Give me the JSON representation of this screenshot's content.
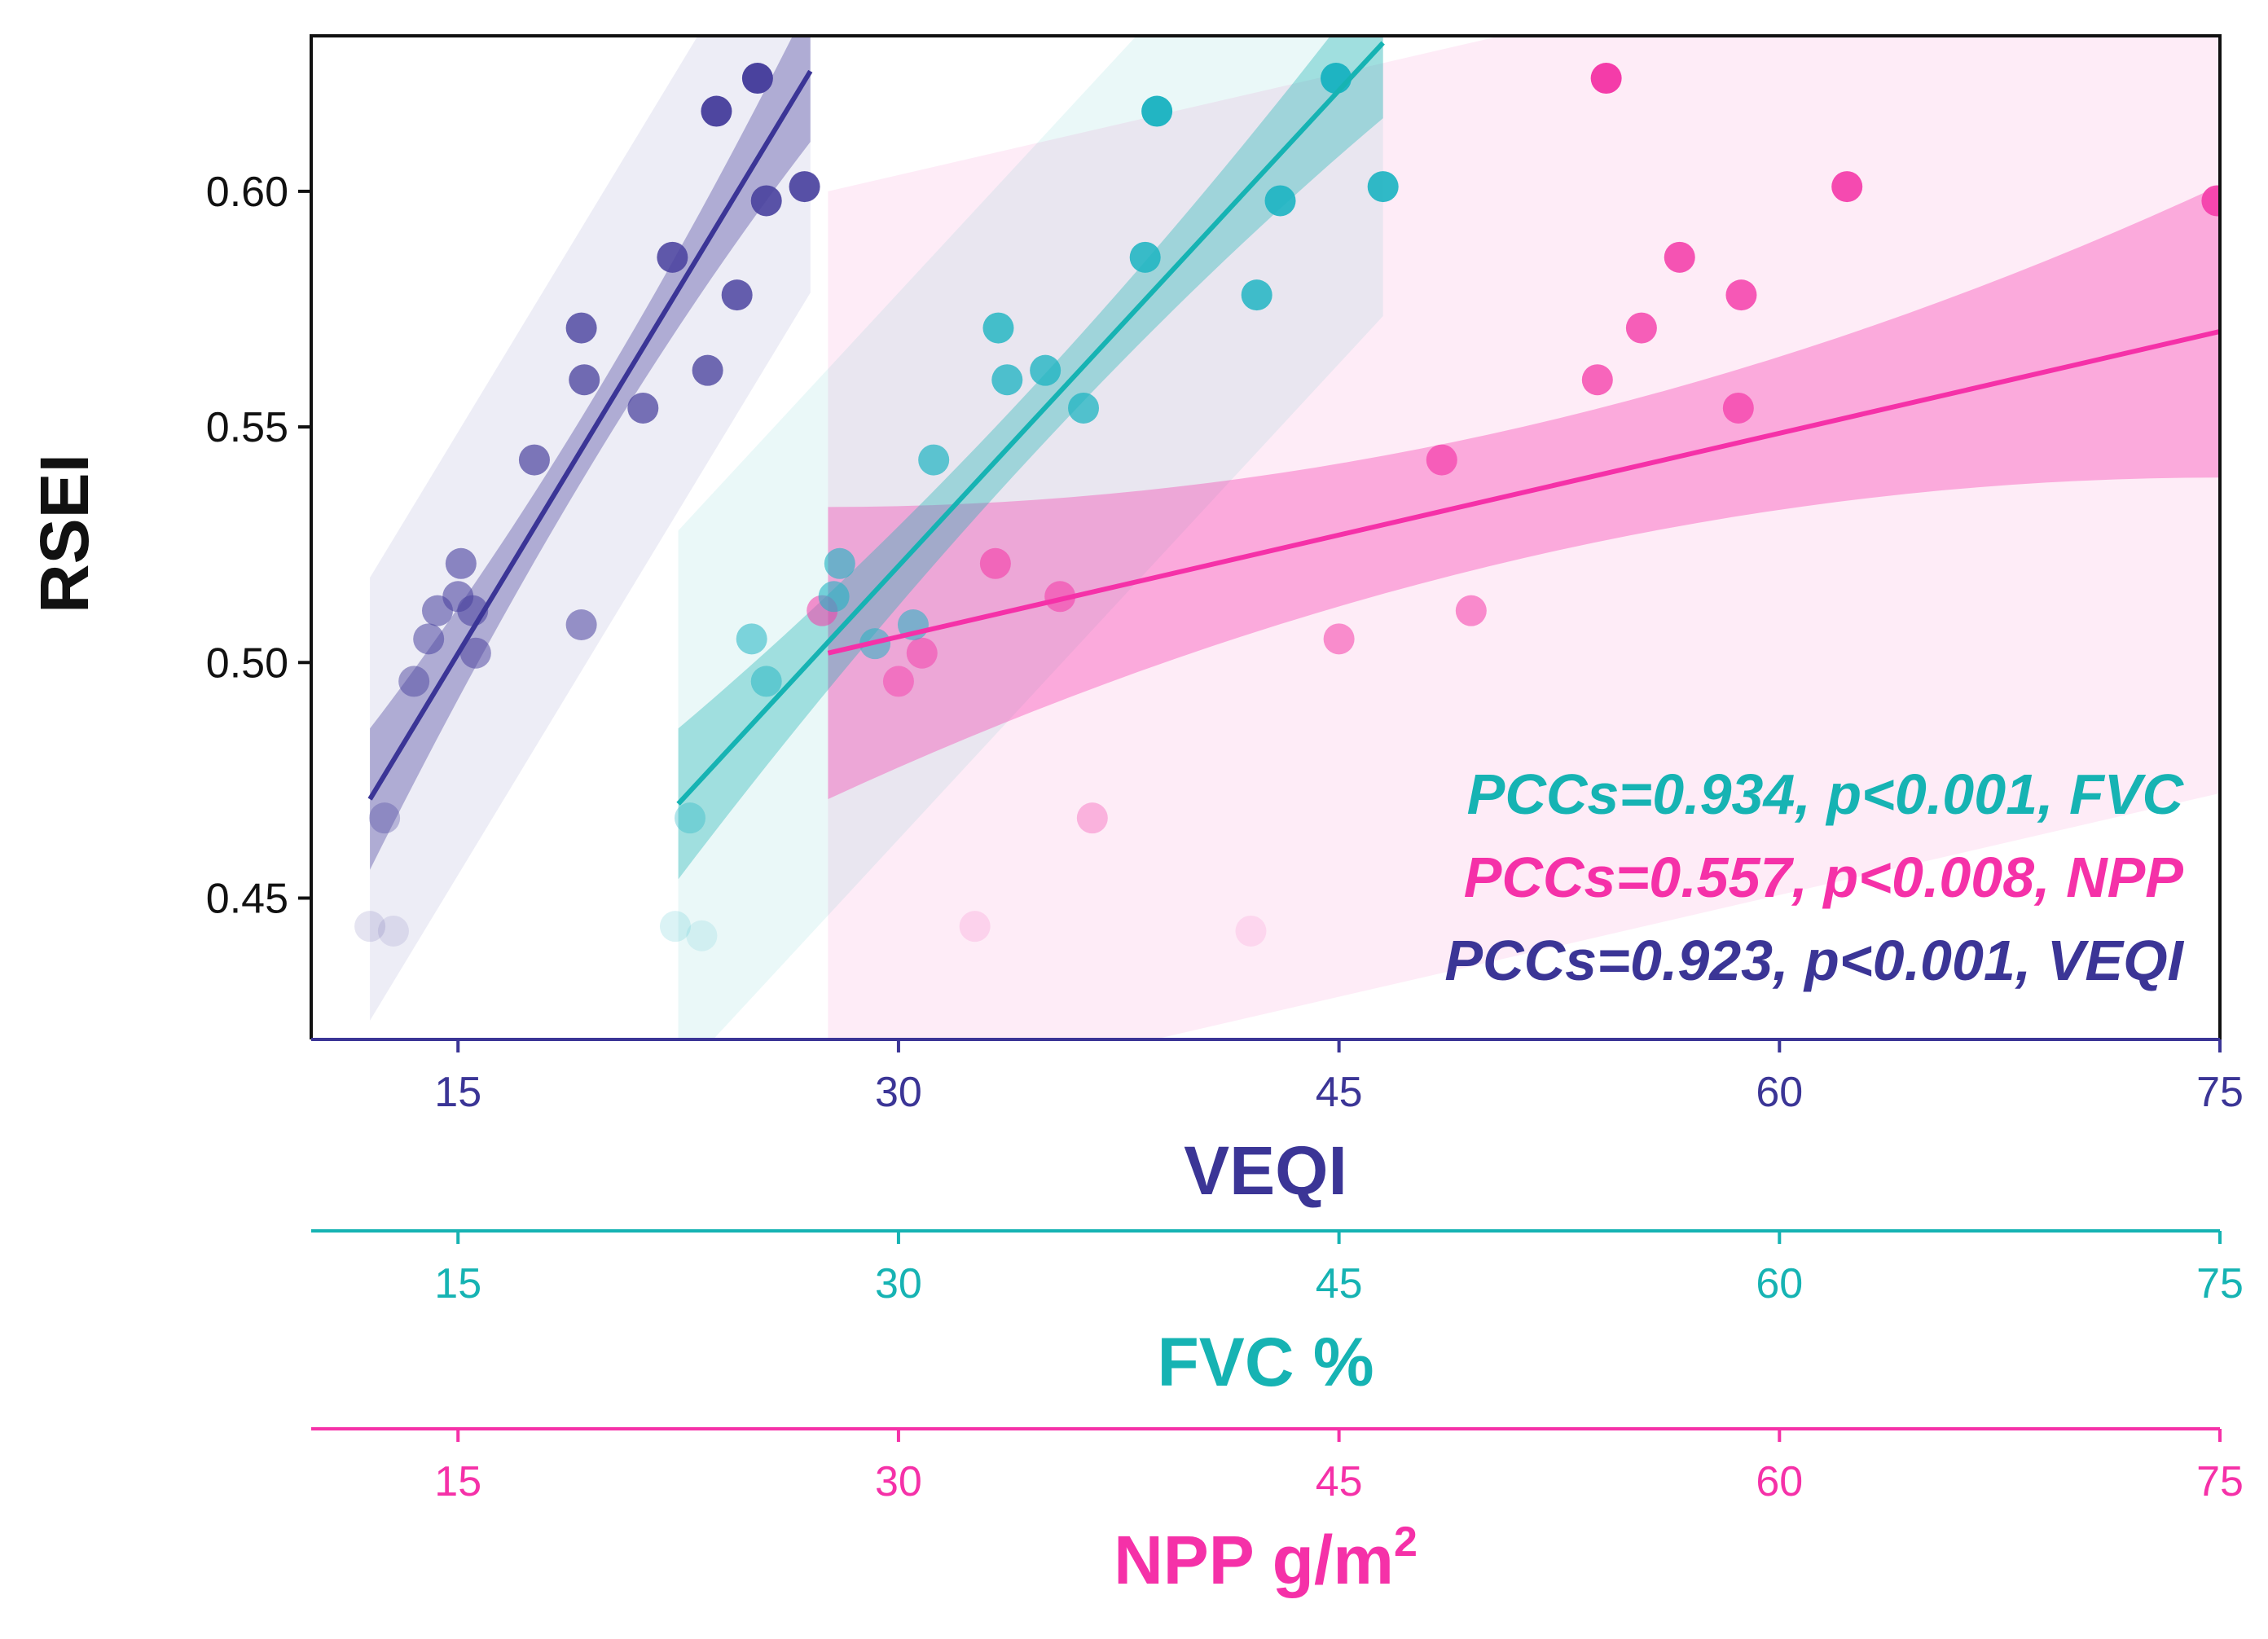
{
  "chart_data": {
    "type": "scatter",
    "y_axis": {
      "title": "RSEI",
      "range": [
        0.42,
        0.633
      ],
      "ticks": [
        0.45,
        0.5,
        0.55,
        0.6
      ],
      "tick_labels": [
        "0.45",
        "0.50",
        "0.55",
        "0.60"
      ]
    },
    "x_axes": [
      {
        "key": "veqi",
        "title": "VEQI",
        "color": "#3b3596",
        "range": [
          10,
          75
        ],
        "ticks": [
          15,
          30,
          45,
          60,
          75
        ],
        "tick_labels": [
          "15",
          "30",
          "45",
          "60",
          "75"
        ]
      },
      {
        "key": "fvc",
        "title": "FVC %",
        "color": "#16b3b3",
        "range": [
          10,
          75
        ],
        "ticks": [
          15,
          30,
          45,
          60,
          75
        ],
        "tick_labels": [
          "15",
          "30",
          "45",
          "60",
          "75"
        ]
      },
      {
        "key": "npp",
        "title_main": "NPP g/m",
        "title_sup": "2",
        "color": "#f531a8",
        "range": [
          10,
          75
        ],
        "ticks": [
          15,
          30,
          45,
          60,
          75
        ],
        "tick_labels": [
          "15",
          "30",
          "45",
          "60",
          "75"
        ]
      }
    ],
    "series": [
      {
        "name": "VEQI",
        "color": "#3b3596",
        "point_color": "#4a429e",
        "fit": {
          "slope": 0.0103,
          "x_range": [
            12,
            27
          ],
          "y_start": 0.471
        },
        "ci": {
          "x_range": [
            12,
            27
          ],
          "se_at_ends": 0.015
        },
        "pi": {
          "x_range": [
            12,
            27
          ],
          "half_width": 0.047
        },
        "points": [
          {
            "x": 12.0,
            "y": 0.444
          },
          {
            "x": 12.5,
            "y": 0.467
          },
          {
            "x": 12.8,
            "y": 0.443
          },
          {
            "x": 13.5,
            "y": 0.496
          },
          {
            "x": 14.0,
            "y": 0.505
          },
          {
            "x": 14.3,
            "y": 0.511
          },
          {
            "x": 15.0,
            "y": 0.514
          },
          {
            "x": 15.1,
            "y": 0.521
          },
          {
            "x": 15.5,
            "y": 0.511
          },
          {
            "x": 15.6,
            "y": 0.502
          },
          {
            "x": 17.6,
            "y": 0.543
          },
          {
            "x": 19.2,
            "y": 0.571
          },
          {
            "x": 19.3,
            "y": 0.56
          },
          {
            "x": 19.2,
            "y": 0.508
          },
          {
            "x": 21.3,
            "y": 0.554
          },
          {
            "x": 22.3,
            "y": 0.586
          },
          {
            "x": 23.5,
            "y": 0.562
          },
          {
            "x": 23.8,
            "y": 0.617
          },
          {
            "x": 24.5,
            "y": 0.578
          },
          {
            "x": 25.2,
            "y": 0.624
          },
          {
            "x": 25.5,
            "y": 0.598
          },
          {
            "x": 26.8,
            "y": 0.601
          }
        ]
      },
      {
        "name": "FVC",
        "color": "#16b3b3",
        "point_color": "#1eb4c2",
        "fit": {
          "slope": 0.00673,
          "x_range": [
            22.5,
            46.5
          ],
          "y_start": 0.47
        },
        "ci": {
          "x_range": [
            22.5,
            46.5
          ],
          "se_at_ends": 0.016
        },
        "pi": {
          "x_range": [
            22.5,
            46.5
          ],
          "half_width": 0.058
        },
        "points": [
          {
            "x": 22.4,
            "y": 0.444
          },
          {
            "x": 22.9,
            "y": 0.467
          },
          {
            "x": 23.3,
            "y": 0.442
          },
          {
            "x": 25.0,
            "y": 0.505
          },
          {
            "x": 25.5,
            "y": 0.496
          },
          {
            "x": 27.8,
            "y": 0.514
          },
          {
            "x": 28.0,
            "y": 0.521
          },
          {
            "x": 29.2,
            "y": 0.504
          },
          {
            "x": 30.5,
            "y": 0.508
          },
          {
            "x": 31.2,
            "y": 0.543
          },
          {
            "x": 33.4,
            "y": 0.571
          },
          {
            "x": 33.7,
            "y": 0.56
          },
          {
            "x": 35.0,
            "y": 0.562
          },
          {
            "x": 36.3,
            "y": 0.554
          },
          {
            "x": 38.4,
            "y": 0.586
          },
          {
            "x": 38.8,
            "y": 0.617
          },
          {
            "x": 42.2,
            "y": 0.578
          },
          {
            "x": 43.0,
            "y": 0.598
          },
          {
            "x": 44.9,
            "y": 0.624
          },
          {
            "x": 46.5,
            "y": 0.601
          }
        ]
      },
      {
        "name": "NPP",
        "color": "#f531a8",
        "point_color": "#f43ca9",
        "fit": {
          "slope": 0.00144,
          "x_range": [
            27.6,
            75
          ],
          "y_start": 0.502
        },
        "ci": {
          "x_range": [
            27.6,
            75
          ],
          "se_at_ends": 0.031
        },
        "pi": {
          "x_range": [
            27.6,
            75
          ],
          "half_width": 0.098
        },
        "points": [
          {
            "x": 27.4,
            "y": 0.511
          },
          {
            "x": 30.0,
            "y": 0.496
          },
          {
            "x": 30.8,
            "y": 0.502
          },
          {
            "x": 32.6,
            "y": 0.444
          },
          {
            "x": 33.3,
            "y": 0.521
          },
          {
            "x": 35.5,
            "y": 0.514
          },
          {
            "x": 36.6,
            "y": 0.467
          },
          {
            "x": 42.0,
            "y": 0.443
          },
          {
            "x": 45.0,
            "y": 0.505
          },
          {
            "x": 48.5,
            "y": 0.543
          },
          {
            "x": 49.5,
            "y": 0.511
          },
          {
            "x": 53.8,
            "y": 0.56
          },
          {
            "x": 54.1,
            "y": 0.624
          },
          {
            "x": 55.3,
            "y": 0.571
          },
          {
            "x": 56.6,
            "y": 0.586
          },
          {
            "x": 58.6,
            "y": 0.554
          },
          {
            "x": 58.7,
            "y": 0.578
          },
          {
            "x": 62.3,
            "y": 0.601
          },
          {
            "x": 74.9,
            "y": 0.598
          }
        ]
      }
    ],
    "annotations": [
      {
        "text": "PCCs=0.934, p<0.001, FVC",
        "color": "#16b3b3"
      },
      {
        "text": "PCCs=0.557, p<0.008, NPP",
        "color": "#f531a8"
      },
      {
        "text": "PCCs=0.923, p<0.001, VEQI",
        "color": "#3b3596"
      }
    ]
  }
}
